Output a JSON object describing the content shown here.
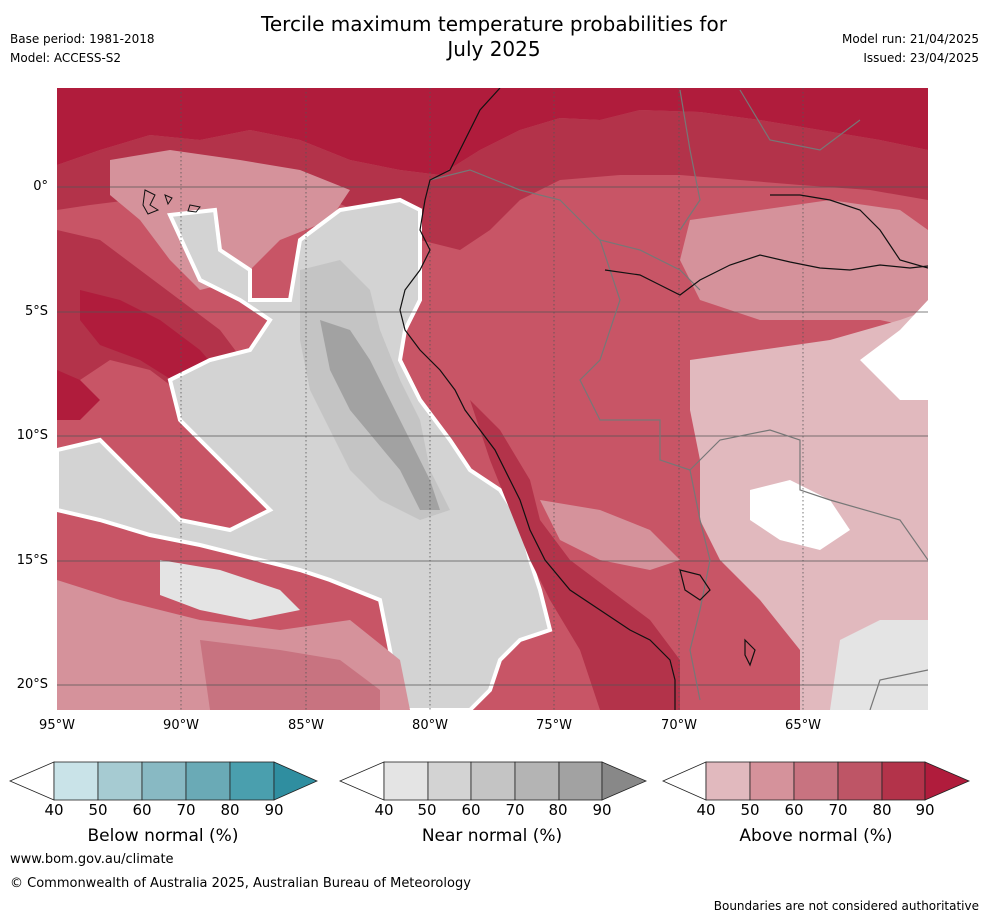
{
  "header": {
    "title_line1": "Tercile maximum temperature probabilities for",
    "title_line2": "July 2025",
    "base_period": "Base period: 1981-2018",
    "model": "Model: ACCESS-S2",
    "model_run": "Model run: 21/04/2025",
    "issued": "Issued: 23/04/2025"
  },
  "map": {
    "lat_labels": [
      "0°",
      "5°S",
      "10°S",
      "15°S",
      "20°S"
    ],
    "lon_labels": [
      "95°W",
      "90°W",
      "85°W",
      "80°W",
      "75°W",
      "70°W",
      "65°W"
    ],
    "background_color": "#c85566"
  },
  "colorbars": [
    {
      "label": "Below normal (%)",
      "ticks": [
        "40",
        "50",
        "60",
        "70",
        "80",
        "90"
      ],
      "colors": [
        "#ffffff",
        "#c9e3e8",
        "#a6cbd2",
        "#88b9c3",
        "#6aaab6",
        "#4a9fae",
        "#2f8ea0"
      ]
    },
    {
      "label": "Near normal (%)",
      "ticks": [
        "40",
        "50",
        "60",
        "70",
        "80",
        "90"
      ],
      "colors": [
        "#ffffff",
        "#e4e4e4",
        "#d3d3d3",
        "#c4c4c4",
        "#b4b4b4",
        "#a2a2a2",
        "#888888"
      ]
    },
    {
      "label": "Above normal (%)",
      "ticks": [
        "40",
        "50",
        "60",
        "70",
        "80",
        "90"
      ],
      "colors": [
        "#ffffff",
        "#e1b9be",
        "#d5929b",
        "#c87380",
        "#be5566",
        "#b3334a",
        "#b01c3c"
      ]
    }
  ],
  "footer": {
    "website": "www.bom.gov.au/climate",
    "copyright": "© Commonwealth of Australia 2025, Australian Bureau of Meteorology",
    "disclaimer": "Boundaries are not considered authoritative"
  }
}
